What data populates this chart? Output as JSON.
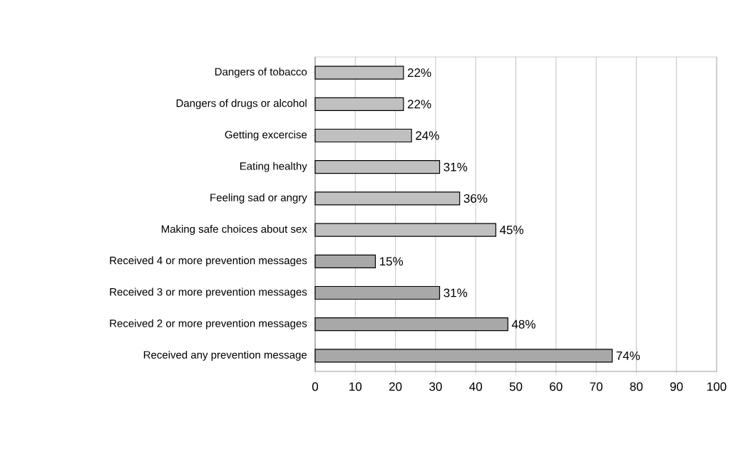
{
  "chart_data": {
    "type": "bar",
    "orientation": "horizontal",
    "categories": [
      "Dangers of tobacco",
      "Dangers of drugs or alcohol",
      "Getting excercise",
      "Eating healthy",
      "Feeling sad or angry",
      "Making safe choices about sex",
      "Received 4 or more prevention messages",
      "Received 3 or more prevention messages",
      "Received 2 or more prevention messages",
      "Received any prevention message"
    ],
    "values": [
      22,
      22,
      24,
      31,
      36,
      45,
      15,
      31,
      48,
      74
    ],
    "value_labels": [
      "22%",
      "22%",
      "24%",
      "31%",
      "36%",
      "45%",
      "15%",
      "31%",
      "48%",
      "74%"
    ],
    "colors": [
      "#c0c0c0",
      "#c0c0c0",
      "#c0c0c0",
      "#c0c0c0",
      "#c0c0c0",
      "#c0c0c0",
      "#a8a8a8",
      "#a8a8a8",
      "#a8a8a8",
      "#a8a8a8"
    ],
    "xlim": [
      0,
      100
    ],
    "xticks": [
      0,
      10,
      20,
      30,
      40,
      50,
      60,
      70,
      80,
      90,
      100
    ],
    "grid": "x"
  }
}
